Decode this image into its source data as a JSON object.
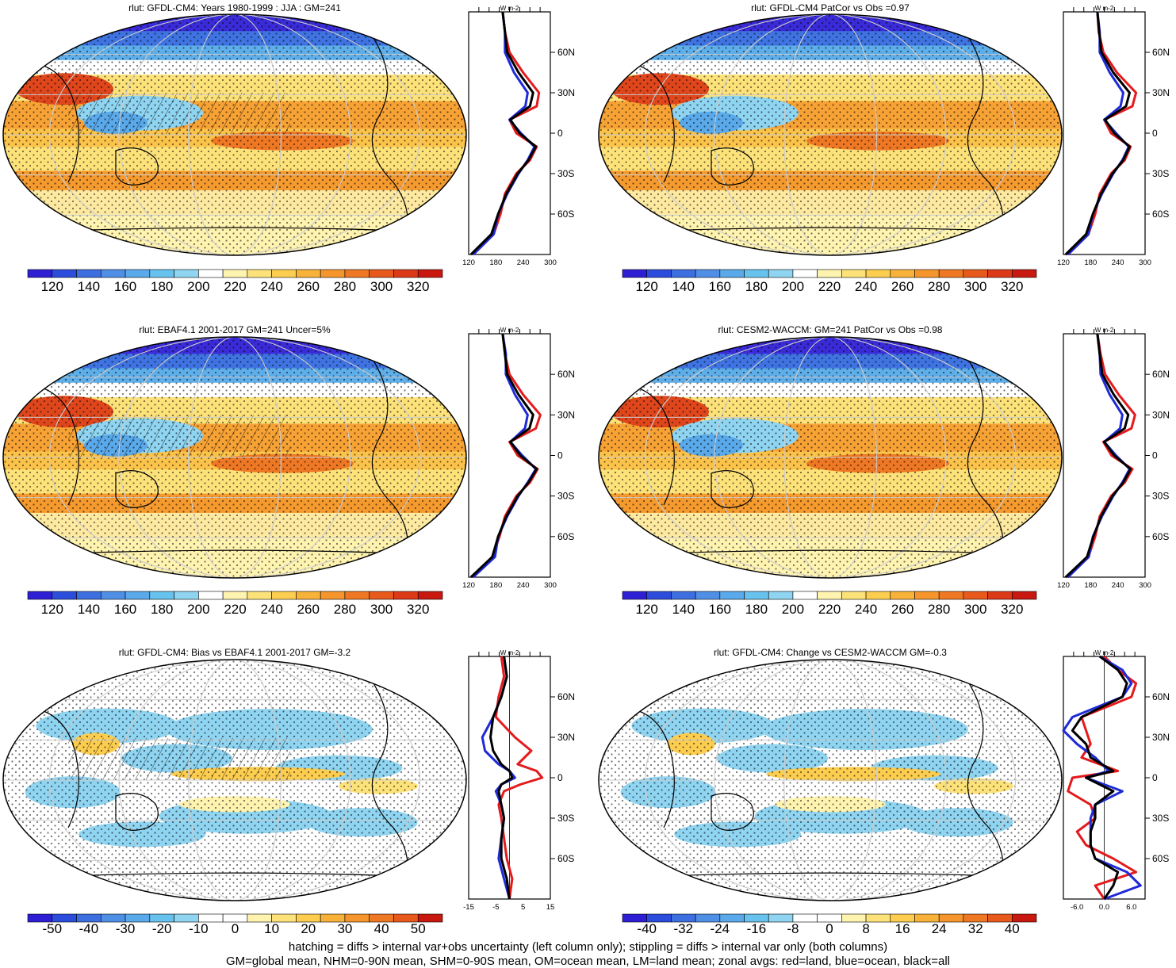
{
  "footer": {
    "line1": "hatching = diffs > internal var+obs uncertainty (left column only); stippling = diffs > internal var only (both columns)",
    "line2": "GM=global mean, NHM=0-90N mean, SHM=0-90S mean, OM=ocean mean, LM=land mean; zonal avgs: red=land, blue=ocean, black=all"
  },
  "chart_data": [
    {
      "type": "heatmap",
      "title": "rlut: GFDL-CM4: Years 1980-1999 : JJA : GM=241",
      "colorbar": {
        "labels": [
          "120",
          "140",
          "160",
          "180",
          "200",
          "220",
          "240",
          "260",
          "280",
          "300",
          "320"
        ],
        "colors": [
          "#2f1fd4",
          "#2c4ddb",
          "#3e6fe0",
          "#4f8fe6",
          "#5aa9ea",
          "#67c2ee",
          "#8fd4f0",
          "#ffffff",
          "#fff3b0",
          "#fde27a",
          "#fccd4f",
          "#f9b239",
          "#f5952c",
          "#ef7824",
          "#e85a1c",
          "#dc3a16",
          "#c8180f"
        ]
      },
      "profile": {
        "title": "W m-2",
        "xticks": [
          "120",
          "180",
          "240",
          "300"
        ],
        "yticks": [
          "60N",
          "30N",
          "0",
          "30S",
          "60S"
        ],
        "xlim": [
          120,
          300
        ],
        "lat": [
          90,
          75,
          60,
          45,
          30,
          20,
          10,
          0,
          -10,
          -20,
          -30,
          -45,
          -60,
          -75,
          -90
        ],
        "land": [
          195,
          200,
          210,
          240,
          275,
          270,
          210,
          225,
          270,
          255,
          225,
          200,
          190,
          175,
          130
        ],
        "ocean": [
          195,
          200,
          200,
          220,
          250,
          245,
          210,
          235,
          265,
          250,
          230,
          205,
          185,
          175,
          130
        ],
        "all": [
          195,
          200,
          205,
          230,
          262,
          255,
          212,
          232,
          268,
          252,
          228,
          203,
          185,
          170,
          125
        ]
      }
    },
    {
      "type": "heatmap",
      "title": "rlut: GFDL-CM4 PatCor vs Obs =0.97",
      "colorbar": {
        "labels": [
          "120",
          "140",
          "160",
          "180",
          "200",
          "220",
          "240",
          "260",
          "280",
          "300",
          "320"
        ]
      },
      "profile": {
        "title": "W m-2",
        "xticks": [
          "120",
          "180",
          "240",
          "300"
        ],
        "yticks": [
          "60N",
          "30N",
          "0",
          "30S",
          "60S"
        ],
        "xlim": [
          120,
          300
        ],
        "lat": [
          90,
          75,
          60,
          45,
          30,
          20,
          10,
          0,
          -10,
          -20,
          -30,
          -45,
          -60,
          -75,
          -90
        ],
        "land": [
          195,
          198,
          208,
          238,
          280,
          272,
          210,
          225,
          268,
          255,
          225,
          200,
          190,
          175,
          130
        ],
        "ocean": [
          195,
          200,
          200,
          222,
          252,
          246,
          210,
          236,
          264,
          250,
          230,
          205,
          185,
          175,
          130
        ],
        "all": [
          195,
          199,
          204,
          230,
          266,
          258,
          212,
          232,
          266,
          252,
          228,
          203,
          185,
          170,
          125
        ]
      }
    },
    {
      "type": "heatmap",
      "title": "rlut: EBAF4.1 2001-2017 GM=241 Uncer=5%",
      "colorbar": {
        "labels": [
          "120",
          "140",
          "160",
          "180",
          "200",
          "220",
          "240",
          "260",
          "280",
          "300",
          "320"
        ]
      },
      "profile": {
        "title": "W m-2",
        "xticks": [
          "120",
          "180",
          "240",
          "300"
        ],
        "yticks": [
          "60N",
          "30N",
          "0",
          "30S",
          "60S"
        ],
        "xlim": [
          120,
          300
        ],
        "lat": [
          90,
          75,
          60,
          45,
          30,
          20,
          10,
          0,
          -10,
          -20,
          -30,
          -45,
          -60,
          -75,
          -90
        ],
        "land": [
          195,
          200,
          210,
          240,
          278,
          268,
          210,
          228,
          272,
          255,
          225,
          200,
          188,
          172,
          130
        ],
        "ocean": [
          195,
          202,
          202,
          222,
          250,
          244,
          212,
          238,
          268,
          250,
          230,
          205,
          185,
          178,
          130
        ],
        "all": [
          195,
          200,
          205,
          230,
          262,
          254,
          212,
          234,
          270,
          252,
          228,
          203,
          185,
          172,
          125
        ]
      }
    },
    {
      "type": "heatmap",
      "title": "rlut: CESM2-WACCM: GM=241 PatCor vs Obs =0.98",
      "colorbar": {
        "labels": [
          "120",
          "140",
          "160",
          "180",
          "200",
          "220",
          "240",
          "260",
          "280",
          "300",
          "320"
        ]
      },
      "profile": {
        "title": "W m-2",
        "xticks": [
          "120",
          "180",
          "240",
          "300"
        ],
        "yticks": [
          "60N",
          "30N",
          "0",
          "30S",
          "60S"
        ],
        "xlim": [
          120,
          300
        ],
        "lat": [
          90,
          75,
          60,
          45,
          30,
          20,
          10,
          0,
          -10,
          -20,
          -30,
          -45,
          -60,
          -75,
          -90
        ],
        "land": [
          195,
          202,
          212,
          242,
          278,
          270,
          208,
          226,
          272,
          255,
          225,
          200,
          190,
          175,
          130
        ],
        "ocean": [
          195,
          200,
          202,
          222,
          250,
          245,
          210,
          236,
          266,
          250,
          230,
          205,
          185,
          176,
          130
        ],
        "all": [
          195,
          200,
          206,
          231,
          263,
          255,
          210,
          232,
          268,
          252,
          228,
          203,
          186,
          172,
          125
        ]
      }
    },
    {
      "type": "heatmap",
      "title": "rlut: GFDL-CM4: Bias vs EBAF4.1 2001-2017 GM=-3.2",
      "colorbar": {
        "labels": [
          "-50",
          "-40",
          "-30",
          "-20",
          "-10",
          "0",
          "10",
          "20",
          "30",
          "40",
          "50"
        ],
        "colors": [
          "#2f1fd4",
          "#2c4ddb",
          "#3e6fe0",
          "#4f8fe6",
          "#5aa9ea",
          "#67c2ee",
          "#8fd4f0",
          "#ffffff",
          "#ffffff",
          "#fff3b0",
          "#fde27a",
          "#fccd4f",
          "#f9b239",
          "#f5952c",
          "#ef7824",
          "#e85a1c",
          "#c8180f"
        ]
      },
      "profile": {
        "title": "W m-2",
        "xticks": [
          "-15",
          "-5",
          "5",
          "15"
        ],
        "yticks": [
          "60N",
          "30N",
          "0",
          "30S",
          "60S"
        ],
        "xlim": [
          -15,
          15
        ],
        "lat": [
          90,
          75,
          60,
          45,
          30,
          20,
          10,
          5,
          0,
          -5,
          -10,
          -20,
          -30,
          -45,
          -60,
          -75,
          -90
        ],
        "land": [
          -3,
          -2,
          -4,
          -5,
          2,
          8,
          3,
          10,
          12,
          4,
          -2,
          -4,
          -3,
          -2,
          -1,
          1,
          0
        ],
        "ocean": [
          -2,
          -1,
          -3,
          -6,
          -10,
          -9,
          -4,
          0,
          2,
          -3,
          -5,
          -3,
          -2,
          -3,
          -4,
          -2,
          0
        ],
        "all": [
          -2,
          -1,
          -3,
          -6,
          -7,
          -6,
          -3,
          0,
          1,
          -3,
          -4,
          -3,
          -2,
          -3,
          -3,
          -1,
          0
        ]
      }
    },
    {
      "type": "heatmap",
      "title": "rlut: GFDL-CM4: Change vs CESM2-WACCM GM=-0.3",
      "colorbar": {
        "labels": [
          "-40",
          "-32",
          "-24",
          "-16",
          "-8",
          "0",
          "8",
          "16",
          "24",
          "32",
          "40"
        ],
        "colors": [
          "#2f1fd4",
          "#2c4ddb",
          "#3e6fe0",
          "#4f8fe6",
          "#5aa9ea",
          "#67c2ee",
          "#8fd4f0",
          "#ffffff",
          "#ffffff",
          "#fff3b0",
          "#fde27a",
          "#fccd4f",
          "#f9b239",
          "#f5952c",
          "#ef7824",
          "#e85a1c",
          "#c8180f"
        ]
      },
      "profile": {
        "title": "W m-2",
        "xticks": [
          "-6.0",
          "0.0",
          "6.0"
        ],
        "yticks": [
          "60N",
          "30N",
          "0",
          "30S",
          "60S"
        ],
        "xlim": [
          -9,
          9
        ],
        "lat": [
          90,
          80,
          70,
          60,
          45,
          35,
          25,
          15,
          5,
          0,
          -10,
          -20,
          -30,
          -40,
          -50,
          -60,
          -70,
          -80,
          -90
        ],
        "land": [
          0,
          3,
          7,
          6,
          -5,
          -4,
          -3,
          -5,
          3,
          -7,
          -8,
          -3,
          -2,
          -6,
          -4,
          2,
          7,
          -2,
          0
        ],
        "ocean": [
          -1,
          4,
          6,
          4,
          -7,
          -9,
          -6,
          -2,
          1,
          -4,
          4,
          -2,
          -3,
          -3,
          -3,
          -2,
          5,
          8,
          0
        ],
        "all": [
          -1,
          3,
          5,
          4,
          -5,
          -7,
          -4,
          -3,
          2,
          -4,
          2,
          -2,
          -2,
          -3,
          -3,
          -2,
          3,
          2,
          0
        ]
      }
    }
  ]
}
